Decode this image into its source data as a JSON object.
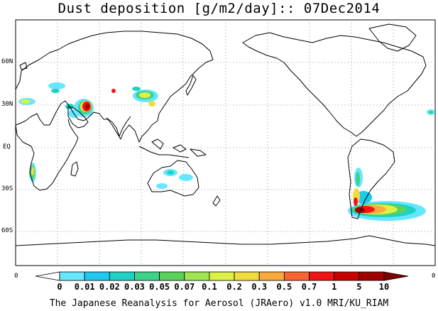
{
  "title": "Dust deposition [g/m2/day]:: 07Dec2014",
  "footer": "The Japanese Reanalysis for Aerosol (JRAero) v1.0 MRI/KU_RIAM",
  "map": {
    "lat_ticks": [
      "60N",
      "30N",
      "EQ",
      "30S",
      "60S"
    ],
    "lon_edge_labels": [
      "0",
      "0"
    ]
  },
  "colorbar": {
    "labels": [
      "0",
      "0.01",
      "0.02",
      "0.03",
      "0.05",
      "0.07",
      "0.1",
      "0.2",
      "0.3",
      "0.5",
      "0.7",
      "1",
      "5",
      "10"
    ],
    "colors": [
      "#ffffff",
      "#66e6ff",
      "#1ec8f0",
      "#1ed2c3",
      "#3cd28c",
      "#5ad25a",
      "#a0e650",
      "#dcf046",
      "#f0dc3c",
      "#faaa3c",
      "#fa6432",
      "#f01414",
      "#c80000",
      "#a00000",
      "#800000"
    ]
  },
  "palette": {
    "land_outline": "#000000",
    "grid": "#a0a0a0",
    "background": "#ffffff"
  }
}
